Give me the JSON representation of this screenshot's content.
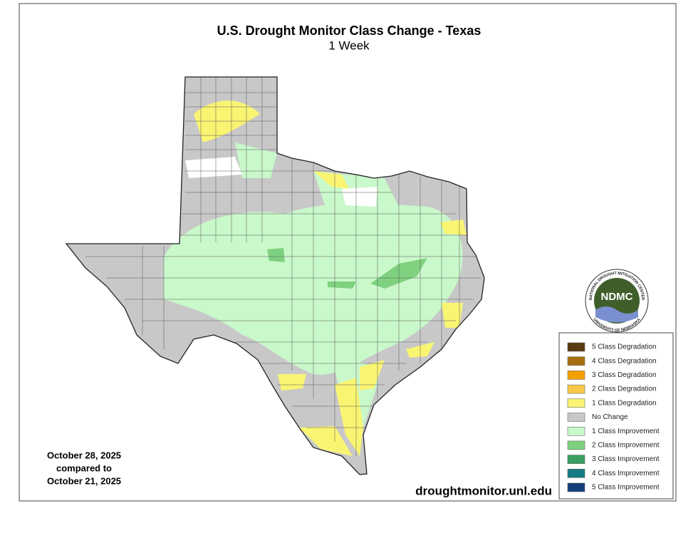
{
  "header": {
    "title": "U.S. Drought Monitor Class Change - Texas",
    "subtitle": "1 Week"
  },
  "dates": [
    "October 28, 2025",
    "compared to",
    "October 21, 2025"
  ],
  "source": "droughtmonitor.unl.edu",
  "logo": {
    "abbreviation": "NDMC",
    "name": "NATIONAL DROUGHT MITIGATION CENTER",
    "university": "UNIVERSITY OF NEBRASKA"
  },
  "legend": {
    "items": [
      {
        "label": "5 Class Degradation",
        "color": "#5a3a10"
      },
      {
        "label": "4 Class Degradation",
        "color": "#a86f10"
      },
      {
        "label": "3 Class Degradation",
        "color": "#f5a000"
      },
      {
        "label": "2 Class Degradation",
        "color": "#f7c84a"
      },
      {
        "label": "1 Class Degradation",
        "color": "#f9f573"
      },
      {
        "label": "No Change",
        "color": "#c8c8c8"
      },
      {
        "label": "1 Class Improvement",
        "color": "#c9f8cb"
      },
      {
        "label": "2 Class Improvement",
        "color": "#7fd17f"
      },
      {
        "label": "3 Class Improvement",
        "color": "#3a9e60"
      },
      {
        "label": "4 Class Improvement",
        "color": "#157a82"
      },
      {
        "label": "5 Class Improvement",
        "color": "#123e7a"
      }
    ]
  }
}
